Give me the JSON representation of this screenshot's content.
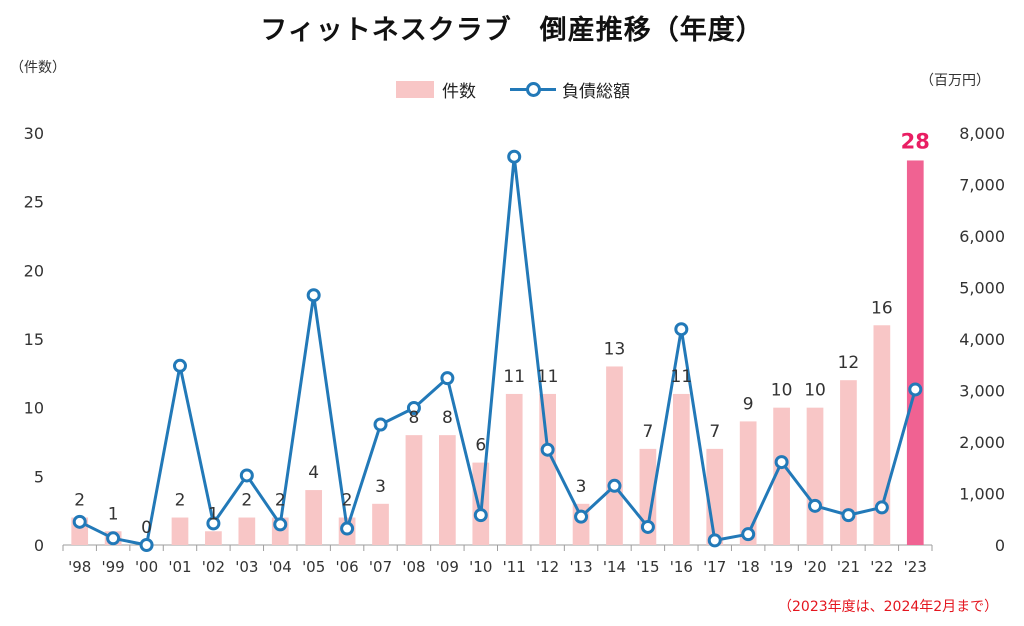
{
  "title": "フィットネスクラブ　倒産推移（年度）",
  "left_unit": "（件数）",
  "right_unit": "（百万円）",
  "legend": {
    "bar_label": "件数",
    "line_label": "負債総額"
  },
  "note": "（2023年度は、2024年2月まで）",
  "colors": {
    "bar": "#f8c6c6",
    "bar_highlight": "#f06292",
    "line": "#2279b8",
    "highlight_label": "#e91e63"
  },
  "chart_data": {
    "type": "bar",
    "categories": [
      "'98",
      "'99",
      "'00",
      "'01",
      "'02",
      "'03",
      "'04",
      "'05",
      "'06",
      "'07",
      "'08",
      "'09",
      "'10",
      "'11",
      "'12",
      "'13",
      "'14",
      "'15",
      "'16",
      "'17",
      "'18",
      "'19",
      "'20",
      "'21",
      "'22",
      "'23"
    ],
    "series": [
      {
        "name": "件数",
        "type": "bar",
        "axis": "left",
        "values": [
          2,
          1,
          0,
          2,
          1,
          2,
          2,
          4,
          2,
          3,
          8,
          8,
          6,
          11,
          11,
          3,
          13,
          7,
          11,
          7,
          9,
          10,
          10,
          12,
          16,
          28
        ],
        "highlight_index": 25
      },
      {
        "name": "負債総額",
        "type": "line",
        "axis": "right",
        "values": [
          450,
          130,
          0,
          3480,
          420,
          1350,
          400,
          4850,
          320,
          2340,
          2660,
          3240,
          580,
          7540,
          1850,
          550,
          1150,
          350,
          4190,
          90,
          210,
          1610,
          760,
          580,
          730,
          3020
        ]
      }
    ],
    "y_left": {
      "min": 0,
      "max": 30,
      "ticks": [
        "0",
        "5",
        "10",
        "15",
        "20",
        "25",
        "30"
      ]
    },
    "y_right": {
      "min": 0,
      "max": 8000,
      "ticks": [
        "0",
        "1,000",
        "2,000",
        "3,000",
        "4,000",
        "5,000",
        "6,000",
        "7,000",
        "8,000"
      ]
    },
    "grid": false,
    "legend_position": "top-center"
  }
}
